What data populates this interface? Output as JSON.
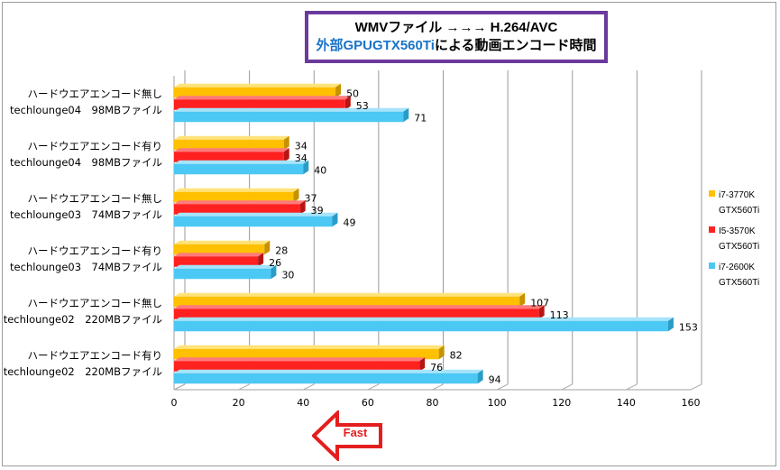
{
  "title": {
    "line1": "WMVファイル →→→  H.264/AVC",
    "line2_prefix": "外部",
    "line2_highlight": "GPUGTX560Ti",
    "line2_suffix": "による動画エンコード時間"
  },
  "fast_label": "Fast",
  "colors": {
    "series1": "#ffc000",
    "series2": "#ff2020",
    "series3": "#4cc8f4",
    "title_border": "#6b3a9c",
    "arrow": "#e41e1e"
  },
  "chart_data": {
    "type": "bar",
    "orientation": "horizontal",
    "categories": [
      [
        "ハードウエアエンコード無し",
        "techlounge04　98MBファイル"
      ],
      [
        "ハードウエアエンコード有り",
        "techlounge04　98MBファイル"
      ],
      [
        "ハードウエアエンコード無し",
        "techlounge03　74MBファイル"
      ],
      [
        "ハードウエアエンコード有り",
        "techlounge03　74MBファイル"
      ],
      [
        "ハードウエアエンコード無し",
        "techlounge02　220MBファイル"
      ],
      [
        "ハードウエアエンコード有り",
        "techlounge02　220MBファイル"
      ]
    ],
    "series": [
      {
        "name": "i7-3770K GTX560Ti",
        "legend": [
          "i7-3770K",
          "GTX560Ti"
        ],
        "values": [
          50,
          34,
          37,
          28,
          107,
          82
        ]
      },
      {
        "name": "I5-3570K GTX560Ti",
        "legend": [
          "I5-3570K",
          "GTX560Ti"
        ],
        "values": [
          53,
          34,
          39,
          26,
          113,
          76
        ]
      },
      {
        "name": "i7-2600K GTX560Ti",
        "legend": [
          "i7-2600K",
          "GTX560Ti"
        ],
        "values": [
          71,
          40,
          49,
          30,
          153,
          94
        ]
      }
    ],
    "xlim": [
      0,
      160
    ],
    "xticks": [
      0,
      20,
      40,
      60,
      80,
      100,
      120,
      140,
      160
    ],
    "grid": true,
    "legend_position": "right"
  }
}
